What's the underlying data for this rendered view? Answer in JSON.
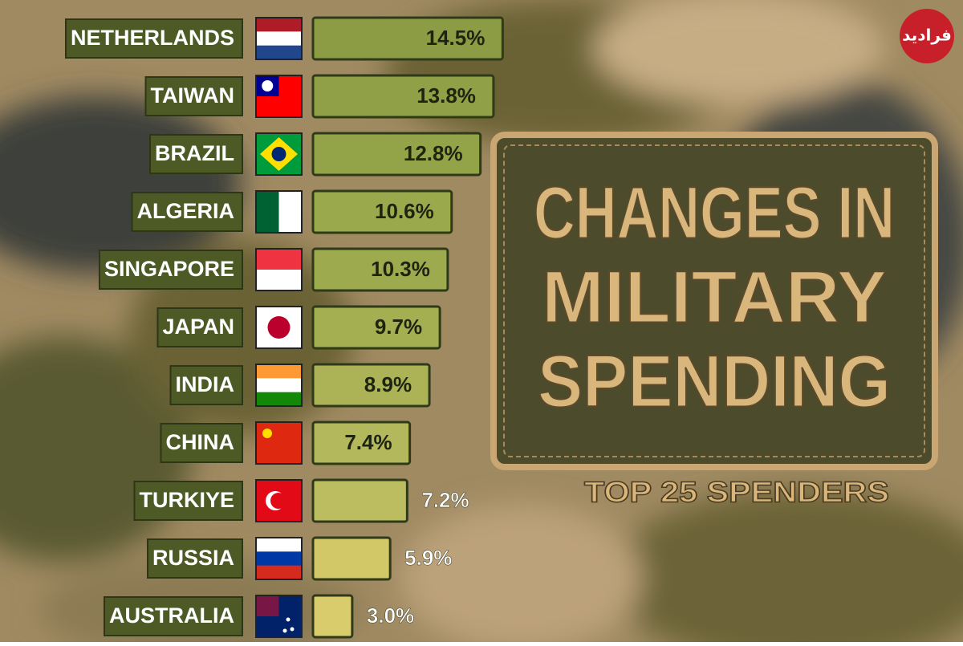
{
  "chart_data": {
    "type": "bar",
    "orientation": "horizontal",
    "title": "CHANGES IN MILITARY SPENDING",
    "title_lines": [
      "CHANGES IN",
      "MILITARY",
      "SPENDING"
    ],
    "subtitle": "TOP 25 SPENDERS",
    "watermark": "فرادید",
    "categories": [
      "NETHERLANDS",
      "TAIWAN",
      "BRAZIL",
      "ALGERIA",
      "SINGAPORE",
      "JAPAN",
      "INDIA",
      "CHINA",
      "TURKIYE",
      "RUSSIA",
      "AUSTRALIA"
    ],
    "values": [
      14.5,
      13.8,
      12.8,
      10.6,
      10.3,
      9.7,
      8.9,
      7.4,
      7.2,
      5.9,
      3.0
    ],
    "value_labels": [
      "14.5%",
      "13.8%",
      "12.8%",
      "10.6%",
      "10.3%",
      "9.7%",
      "8.9%",
      "7.4%",
      "7.2%",
      "5.9%",
      "3.0%"
    ],
    "colors": [
      "#8c9c45",
      "#8fa046",
      "#93a448",
      "#9aa94c",
      "#9dab4e",
      "#a4af52",
      "#abb356",
      "#b4b85c",
      "#bcbd60",
      "#d2c868",
      "#d8cc6c"
    ]
  }
}
